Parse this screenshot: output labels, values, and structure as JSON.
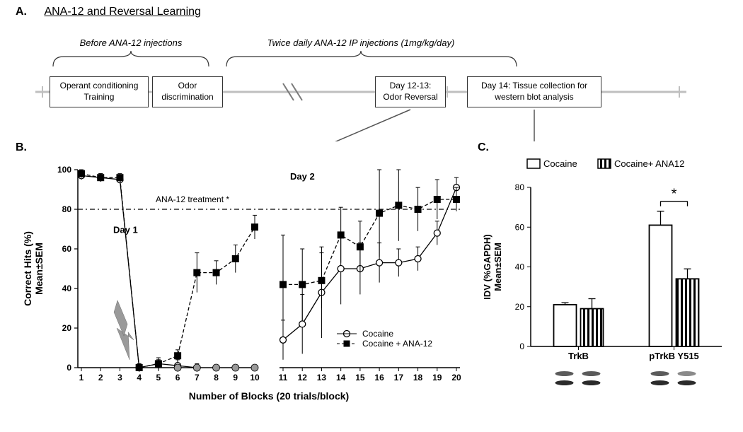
{
  "panelA": {
    "label": "A.",
    "title": "ANA-12 and Reversal Learning",
    "beforeLabel": "Before ANA-12 injections",
    "twiceLabel": "Twice daily ANA-12 IP injections (1mg/kg/day)",
    "box1_line1": "Operant conditioning",
    "box1_line2": "Training",
    "box2_line1": "Odor",
    "box2_line2": "discrimination",
    "box3_line1": "Day 12-13:",
    "box3_line2": "Odor Reversal",
    "box4_line1": "Day 14: Tissue collection for",
    "box4_line2": "western blot analysis"
  },
  "panelB": {
    "label": "B.",
    "type": "line",
    "ylabel_line1": "Correct Hits (%)",
    "ylabel_line2": "Mean±SEM",
    "xlabel": "Number of Blocks (20 trials/block)",
    "treatmentLabel": "ANA-12 treatment *",
    "day1Label": "Day 1",
    "day2Label": "Day 2",
    "legend_cocaine": "Cocaine",
    "legend_cocaine_ana": "Cocaine + ANA-12",
    "refLine": 80,
    "ylim": [
      0,
      100
    ],
    "ytick_step": 20,
    "xticks": [
      1,
      2,
      3,
      4,
      5,
      6,
      7,
      8,
      9,
      10,
      11,
      12,
      13,
      14,
      15,
      16,
      17,
      18,
      19,
      20
    ],
    "cocaine_marker": "circle-open",
    "ana_marker": "square-filled",
    "cocaine_color": "#ffffff",
    "cocaine_stroke": "#000000",
    "ana_color": "#000000",
    "greyDots": [
      6,
      7,
      8,
      9,
      10
    ],
    "greyDotColor": "#9a9a9a",
    "arrowX": 3.5,
    "series": {
      "cocaine_day1": {
        "x": [
          1,
          2,
          3,
          4,
          5,
          6,
          7,
          8,
          9,
          10
        ],
        "y": [
          97,
          96,
          95,
          0,
          2,
          1,
          0,
          null,
          null,
          null
        ],
        "err": [
          2,
          2,
          2,
          2,
          3,
          3,
          2,
          null,
          null,
          null
        ]
      },
      "ana_day1": {
        "x": [
          1,
          2,
          3,
          4,
          5,
          6,
          7,
          8,
          9,
          10
        ],
        "y": [
          98,
          96,
          96,
          0,
          2,
          6,
          48,
          48,
          55,
          71
        ],
        "err": [
          2,
          2,
          2,
          2,
          2,
          3,
          10,
          6,
          7,
          6
        ]
      },
      "cocaine_day2": {
        "x": [
          11,
          12,
          13,
          14,
          15,
          16,
          17,
          18,
          19,
          20
        ],
        "y": [
          14,
          22,
          38,
          50,
          50,
          53,
          53,
          55,
          68,
          91
        ],
        "err": [
          10,
          15,
          23,
          18,
          13,
          10,
          7,
          6,
          6,
          5
        ]
      },
      "ana_day2": {
        "x": [
          11,
          12,
          13,
          14,
          15,
          16,
          17,
          18,
          19,
          20
        ],
        "y": [
          42,
          42,
          44,
          67,
          61,
          78,
          82,
          80,
          85,
          85
        ],
        "err": [
          25,
          18,
          14,
          14,
          13,
          22,
          18,
          11,
          10,
          6
        ]
      }
    },
    "title_fontsize": 13,
    "axis_fontsize": 14,
    "background_color": "#ffffff"
  },
  "panelC": {
    "label": "C.",
    "type": "bar",
    "ylabel_line1": "IDV (%GAPDH)",
    "ylabel_line2": "Mean±SEM",
    "legend_cocaine": "Cocaine",
    "legend_cocaine_ana": "Cocaine+ ANA12",
    "categories": [
      "TrkB",
      "pTrkB Y515"
    ],
    "ylim": [
      0,
      80
    ],
    "ytick_step": 20,
    "sigLabel": "*",
    "bars": {
      "cocaine": {
        "values": [
          21,
          61
        ],
        "err": [
          1,
          7
        ],
        "fill": "#ffffff",
        "stroke": "#000000",
        "pattern": "none"
      },
      "cocaine_ana": {
        "values": [
          19,
          34
        ],
        "err": [
          5,
          5
        ],
        "fill": "#ffffff",
        "stroke": "#000000",
        "pattern": "vstripes"
      }
    },
    "bar_width": 0.4,
    "axis_fontsize": 12,
    "background_color": "#ffffff",
    "blot_colors": {
      "band": "#5b5b5b",
      "band_dark": "#2b2b2b"
    }
  }
}
